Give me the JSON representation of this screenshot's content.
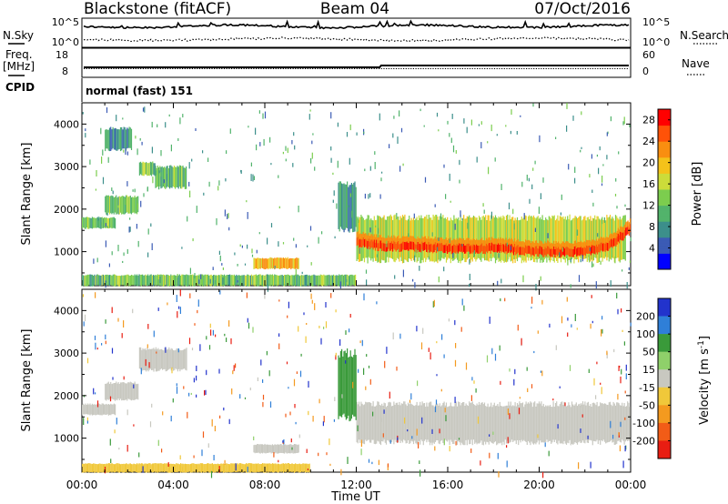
{
  "header": {
    "station": "Blackstone (fitACF)",
    "beam": "Beam 04",
    "date": "07/Oct/2016"
  },
  "noise_panel": {
    "left_label": "N.Sky",
    "right_label": "N.Search",
    "left_ticks": [
      "10^5",
      "10^0"
    ],
    "right_ticks": [
      "10^5",
      "10^0"
    ]
  },
  "freq_panel": {
    "left_label_top": "Freq.",
    "left_label_unit": "[MHz]",
    "right_label": "Nave",
    "left_ticks": [
      "18",
      "8"
    ],
    "right_ticks": [
      "60",
      "0"
    ]
  },
  "cpid_panel": {
    "label": "CPID",
    "value": "normal (fast) 151"
  },
  "colors": {
    "power": [
      "#0000ff",
      "#3b5bb5",
      "#3c8f8b",
      "#52b36b",
      "#7ccd4e",
      "#ccdc3a",
      "#f4c21a",
      "#f98e10",
      "#ff5208",
      "#ff0000"
    ],
    "velocity": [
      "#2233cc",
      "#2f7fd8",
      "#3a9a3a",
      "#8fd06a",
      "#c8c8c0",
      "#f0c83a",
      "#f49a1f",
      "#f25c17",
      "#e81d12"
    ]
  },
  "chart_data": [
    {
      "type": "heatmap",
      "name": "Power",
      "ylabel": "Slant Range [km]",
      "xlabel": "",
      "x_ticks": [
        "00:00",
        "04:00",
        "08:00",
        "12:00",
        "16:00",
        "20:00",
        "00:00"
      ],
      "y_ticks": [
        1000,
        2000,
        3000,
        4000
      ],
      "ylim": [
        200,
        4500
      ],
      "xlim_hours": [
        0,
        24
      ],
      "colorbar_label": "Power [dB]",
      "colorbar_ticks": [
        4,
        8,
        12,
        16,
        20,
        24,
        28
      ],
      "colorbar_range": [
        0,
        30
      ],
      "regions": [
        {
          "t0": 0.0,
          "t1": 1.5,
          "r0": 1550,
          "r1": 1800,
          "level": 12
        },
        {
          "t0": 1.0,
          "t1": 2.5,
          "r0": 1900,
          "r1": 2300,
          "level": 12
        },
        {
          "t0": 2.5,
          "t1": 3.2,
          "r0": 2800,
          "r1": 3100,
          "level": 12
        },
        {
          "t0": 3.2,
          "t1": 4.6,
          "r0": 2500,
          "r1": 3000,
          "level": 12
        },
        {
          "t0": 1.0,
          "t1": 2.2,
          "r0": 3400,
          "r1": 3900,
          "level": 8
        },
        {
          "t0": 7.5,
          "t1": 9.5,
          "r0": 600,
          "r1": 850,
          "level": 20
        },
        {
          "t0": 11.2,
          "t1": 12.0,
          "r0": 1500,
          "r1": 2600,
          "level": 8
        },
        {
          "t0": 12.0,
          "t1": 23.8,
          "r0": 800,
          "r1": 1800,
          "level": 16
        },
        {
          "t0": 0.0,
          "t1": 12.0,
          "r0": 200,
          "r1": 450,
          "level": 12
        }
      ],
      "curves": [
        {
          "t": [
            12.0,
            13,
            14,
            15,
            16,
            17,
            18,
            19,
            20,
            21,
            22,
            23,
            24
          ],
          "range": [
            1200,
            1100,
            1080,
            1070,
            1040,
            1020,
            1050,
            1010,
            970,
            950,
            980,
            1080,
            1500
          ],
          "level": 28
        }
      ]
    },
    {
      "type": "heatmap",
      "name": "Velocity",
      "ylabel": "Slant Range [km]",
      "xlabel": "Time UT",
      "x_ticks": [
        "00:00",
        "04:00",
        "08:00",
        "12:00",
        "16:00",
        "20:00",
        "00:00"
      ],
      "y_ticks": [
        1000,
        2000,
        3000,
        4000
      ],
      "ylim": [
        200,
        4500
      ],
      "xlim_hours": [
        0,
        24
      ],
      "colorbar_label": "Velocity [m s^-1]",
      "colorbar_ticks": [
        200,
        100,
        50,
        15,
        -15,
        -50,
        -100,
        -200
      ],
      "regions": [
        {
          "t0": 0.0,
          "t1": 1.5,
          "r0": 1550,
          "r1": 1800,
          "level": 0
        },
        {
          "t0": 1.0,
          "t1": 2.5,
          "r0": 1900,
          "r1": 2300,
          "level": 0
        },
        {
          "t0": 2.5,
          "t1": 4.6,
          "r0": 2600,
          "r1": 3100,
          "level": 0
        },
        {
          "t0": 7.5,
          "t1": 9.5,
          "r0": 650,
          "r1": 850,
          "level": 0
        },
        {
          "t0": 12.0,
          "t1": 24.0,
          "r0": 900,
          "r1": 1800,
          "level": 0
        },
        {
          "t0": 11.2,
          "t1": 12.0,
          "r0": 1500,
          "r1": 3000,
          "level": 60
        },
        {
          "t0": 0.0,
          "t1": 10.0,
          "r0": 200,
          "r1": 400,
          "level": -40
        }
      ]
    }
  ]
}
